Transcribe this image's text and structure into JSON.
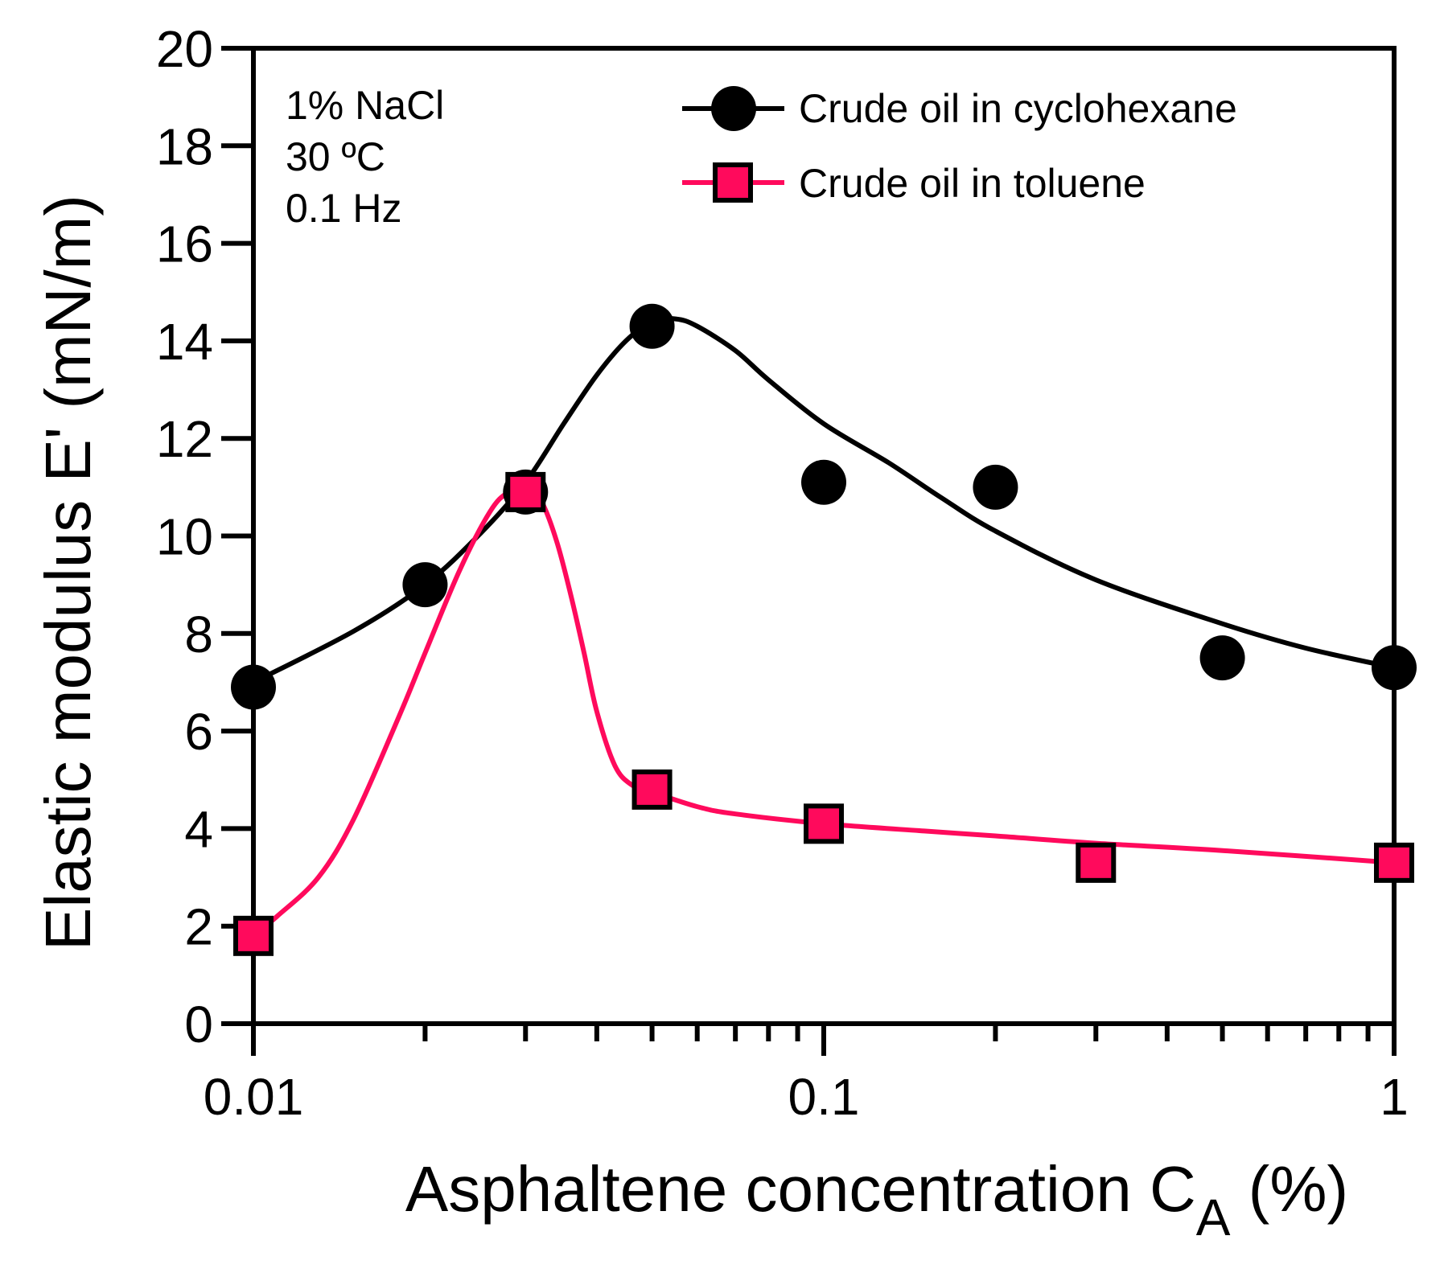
{
  "chart_data": {
    "type": "scatter",
    "xscale": "log",
    "xlim": [
      0.01,
      1
    ],
    "ylim": [
      0,
      20
    ],
    "xticks": [
      {
        "value": 0.01,
        "label": "0.01"
      },
      {
        "value": 0.1,
        "label": "0.1"
      },
      {
        "value": 1,
        "label": "1"
      }
    ],
    "yticks": [
      {
        "value": 0,
        "label": "0"
      },
      {
        "value": 2,
        "label": "2"
      },
      {
        "value": 4,
        "label": "4"
      },
      {
        "value": 6,
        "label": "6"
      },
      {
        "value": 8,
        "label": "8"
      },
      {
        "value": 10,
        "label": "10"
      },
      {
        "value": 12,
        "label": "12"
      },
      {
        "value": 14,
        "label": "14"
      },
      {
        "value": 16,
        "label": "16"
      },
      {
        "value": 18,
        "label": "18"
      },
      {
        "value": 20,
        "label": "20"
      }
    ],
    "xlabel": "Asphaltene concentration C",
    "xlabel_subscript": "A",
    "xlabel_suffix": " (%)",
    "ylabel": "Elastic modulus E' (mN/m)",
    "annotations": [
      "1% NaCl",
      "30 ºC",
      "0.1 Hz"
    ],
    "legend_position": "top-right",
    "series": [
      {
        "name": "Crude oil in cyclohexane",
        "marker": "circle",
        "color": "#000000",
        "x": [
          0.01,
          0.02,
          0.03,
          0.05,
          0.1,
          0.2,
          0.5,
          1
        ],
        "y": [
          6.9,
          9.0,
          10.9,
          14.3,
          11.1,
          11.0,
          7.5,
          7.3
        ],
        "curve_x": [
          0.01,
          0.015,
          0.02,
          0.025,
          0.03,
          0.035,
          0.04,
          0.045,
          0.05,
          0.055,
          0.06,
          0.07,
          0.08,
          0.1,
          0.13,
          0.16,
          0.2,
          0.3,
          0.5,
          0.7,
          1
        ],
        "curve_y": [
          7.0,
          8.05,
          9.0,
          10.05,
          11.1,
          12.3,
          13.3,
          14.0,
          14.4,
          14.45,
          14.3,
          13.8,
          13.2,
          12.3,
          11.5,
          10.8,
          10.1,
          9.1,
          8.2,
          7.7,
          7.3
        ]
      },
      {
        "name": "Crude oil in toluene",
        "marker": "square",
        "color": "#ff0a5c",
        "x": [
          0.01,
          0.03,
          0.05,
          0.1,
          0.3,
          1
        ],
        "y": [
          1.8,
          10.9,
          4.8,
          4.1,
          3.3,
          3.3
        ],
        "curve_x": [
          0.01,
          0.011,
          0.013,
          0.015,
          0.018,
          0.02,
          0.023,
          0.026,
          0.028,
          0.03,
          0.032,
          0.034,
          0.036,
          0.038,
          0.04,
          0.043,
          0.046,
          0.05,
          0.06,
          0.07,
          0.1,
          0.15,
          0.2,
          0.3,
          0.5,
          1
        ],
        "curve_y": [
          1.8,
          2.2,
          3.0,
          4.2,
          6.3,
          7.6,
          9.3,
          10.5,
          10.9,
          11.0,
          10.7,
          9.9,
          8.8,
          7.6,
          6.4,
          5.3,
          4.9,
          4.75,
          4.45,
          4.3,
          4.1,
          3.95,
          3.85,
          3.7,
          3.55,
          3.3
        ]
      }
    ]
  }
}
